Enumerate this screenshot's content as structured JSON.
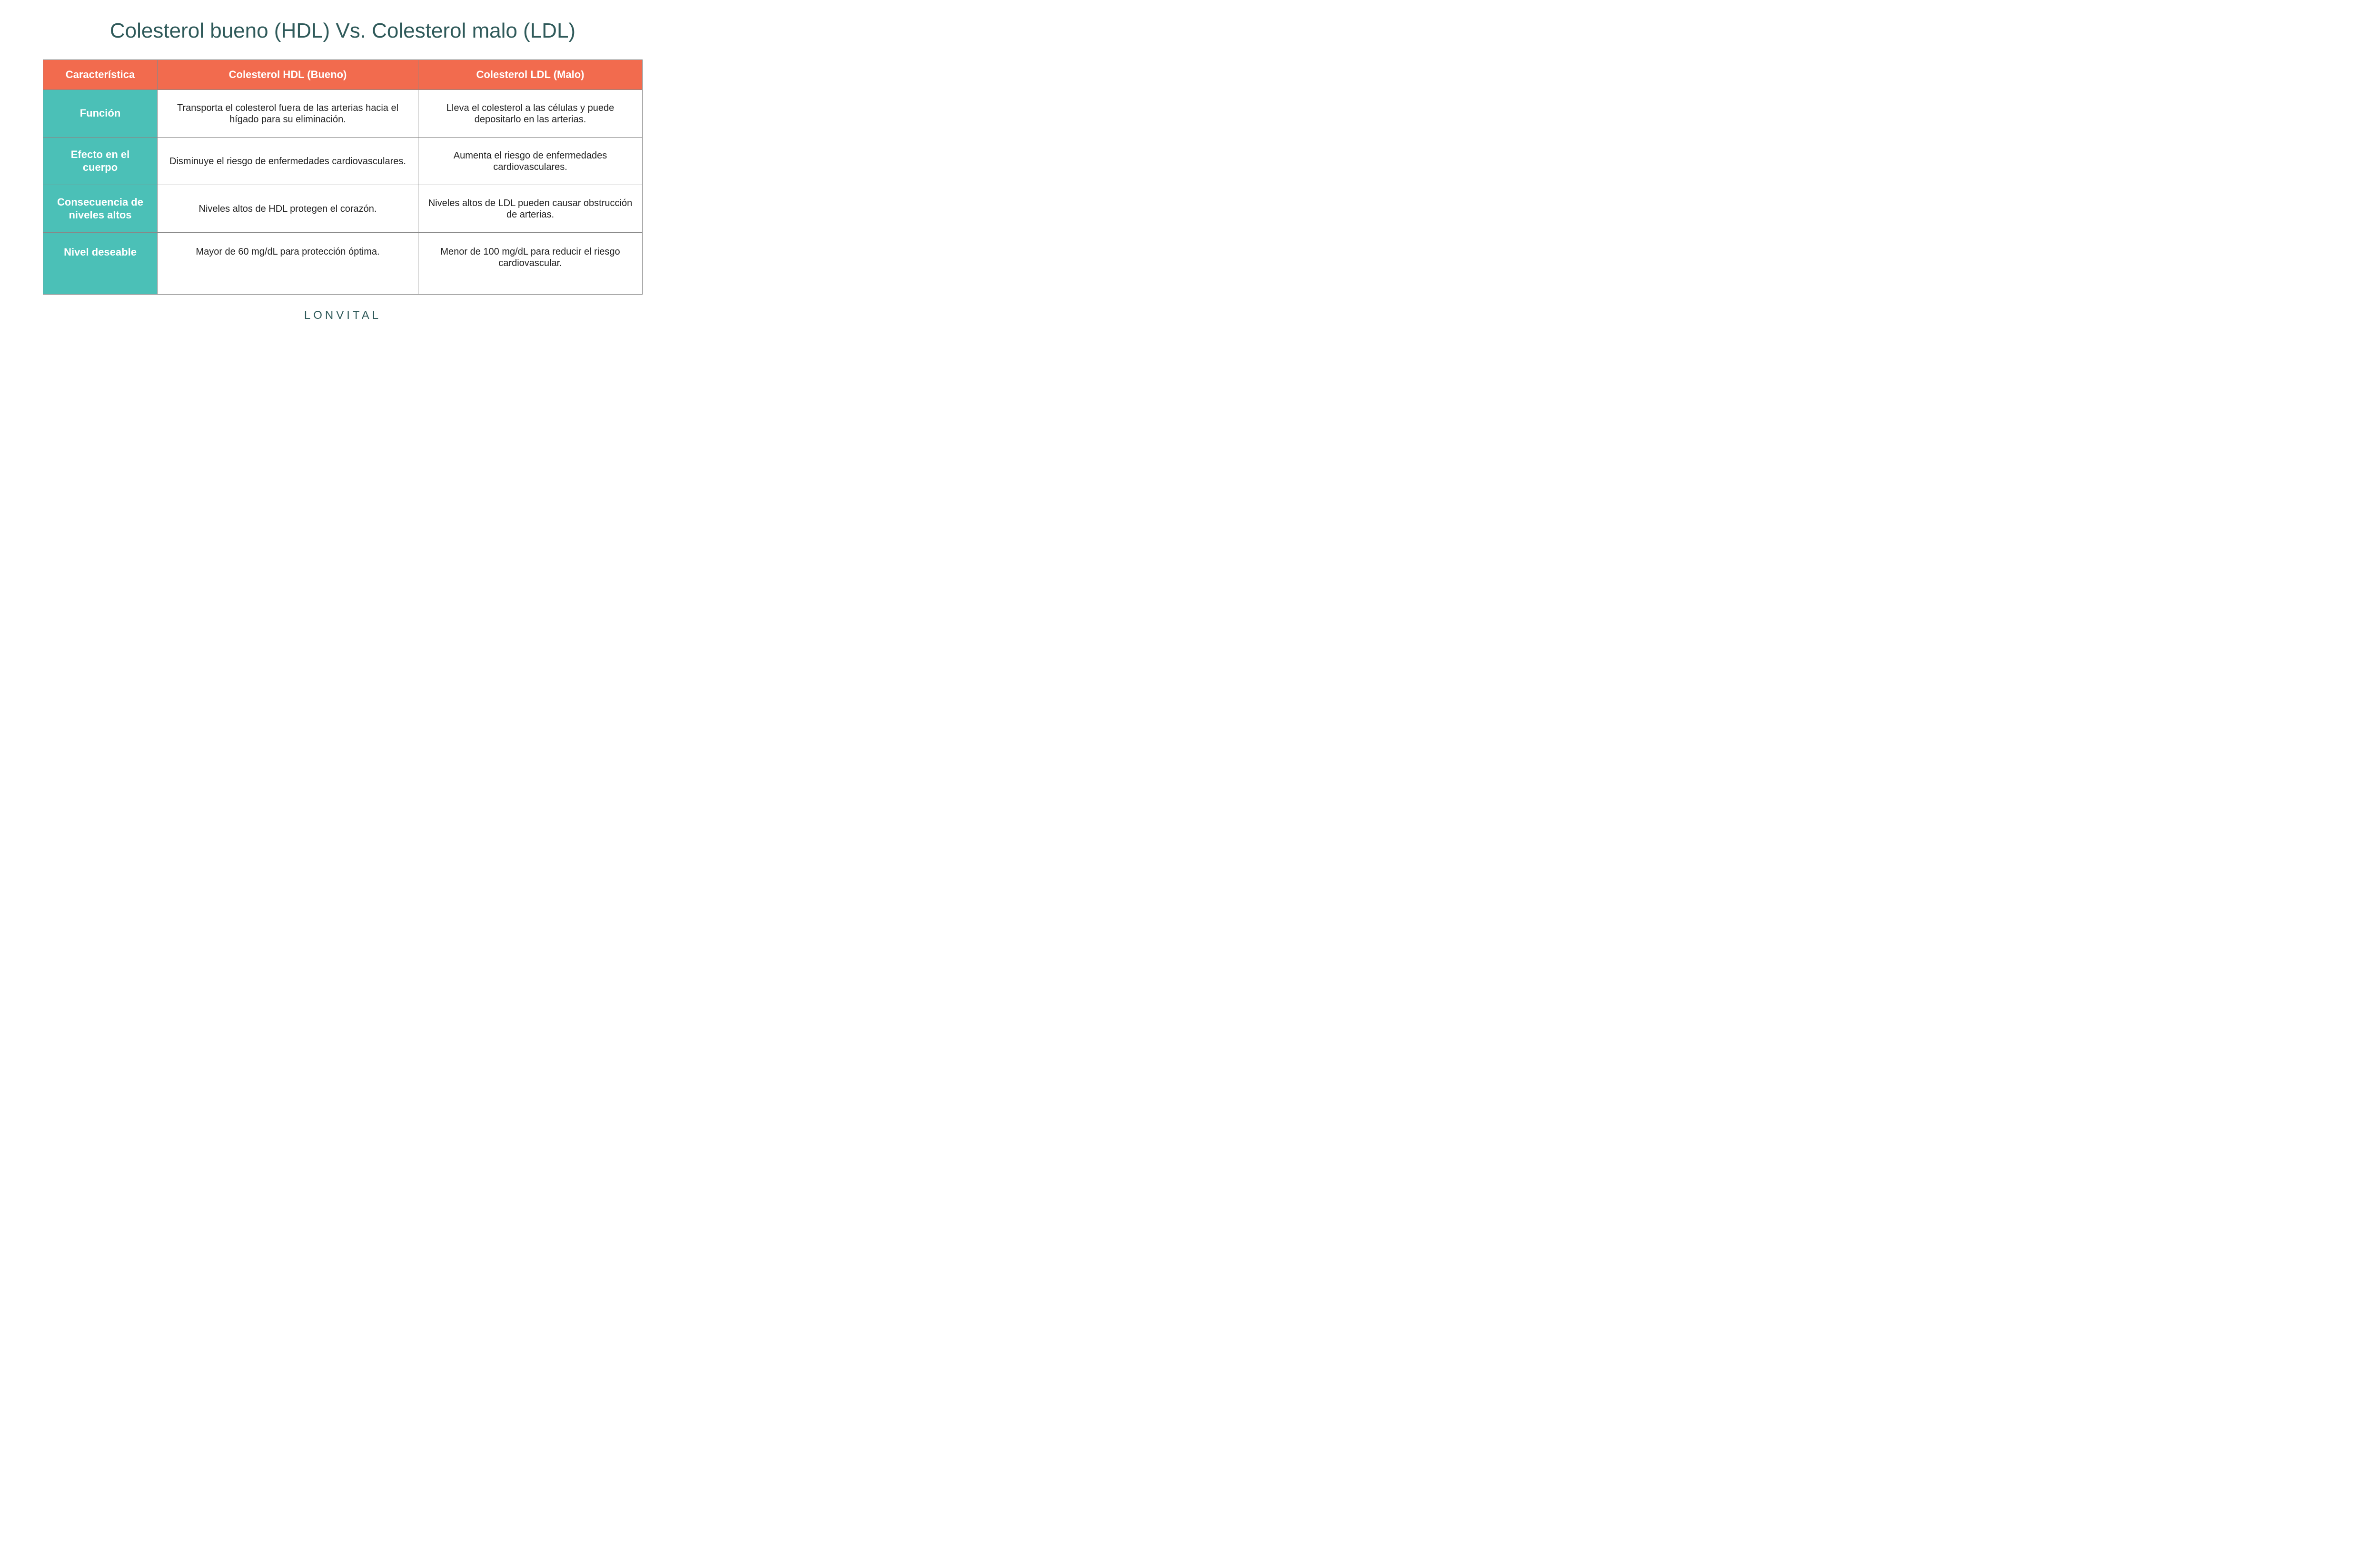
{
  "title": "Colesterol bueno (HDL) Vs. Colesterol malo (LDL)",
  "brand": "LONVITAL",
  "colors": {
    "title_text": "#2f5a5a",
    "header_bg": "#f26b4e",
    "header_text": "#ffffff",
    "row_label_bg": "#4bc0b7",
    "row_label_text": "#ffffff",
    "cell_text": "#222222",
    "border": "#888888",
    "background": "#ffffff"
  },
  "typography": {
    "title_fontsize": 44,
    "header_fontsize": 22,
    "row_label_fontsize": 22,
    "cell_fontsize": 20,
    "brand_fontsize": 24,
    "brand_letter_spacing": 6
  },
  "table": {
    "columns": [
      "Característica",
      "Colesterol HDL (Bueno)",
      "Colesterol LDL (Malo)"
    ],
    "col_widths_pct": [
      19,
      40.5,
      40.5
    ],
    "rows": [
      {
        "label": "Función",
        "hdl": "Transporta el colesterol fuera de las arterias hacia el hígado para su eliminación.",
        "ldl": "Lleva el colesterol a las células y puede depositarlo en las arterias."
      },
      {
        "label": "Efecto en el cuerpo",
        "hdl": "Disminuye el riesgo de enfermedades cardiovasculares.",
        "ldl": "Aumenta el riesgo de enfermedades cardiovasculares."
      },
      {
        "label": "Consecuencia de niveles altos",
        "hdl": "Niveles altos de HDL protegen el corazón.",
        "ldl": "Niveles altos de LDL pueden causar obstrucción de arterias."
      },
      {
        "label": "Nivel deseable",
        "hdl": "Mayor de 60 mg/dL para protección óptima.",
        "ldl": "Menor de 100 mg/dL para reducir el riesgo cardiovascular."
      }
    ]
  }
}
